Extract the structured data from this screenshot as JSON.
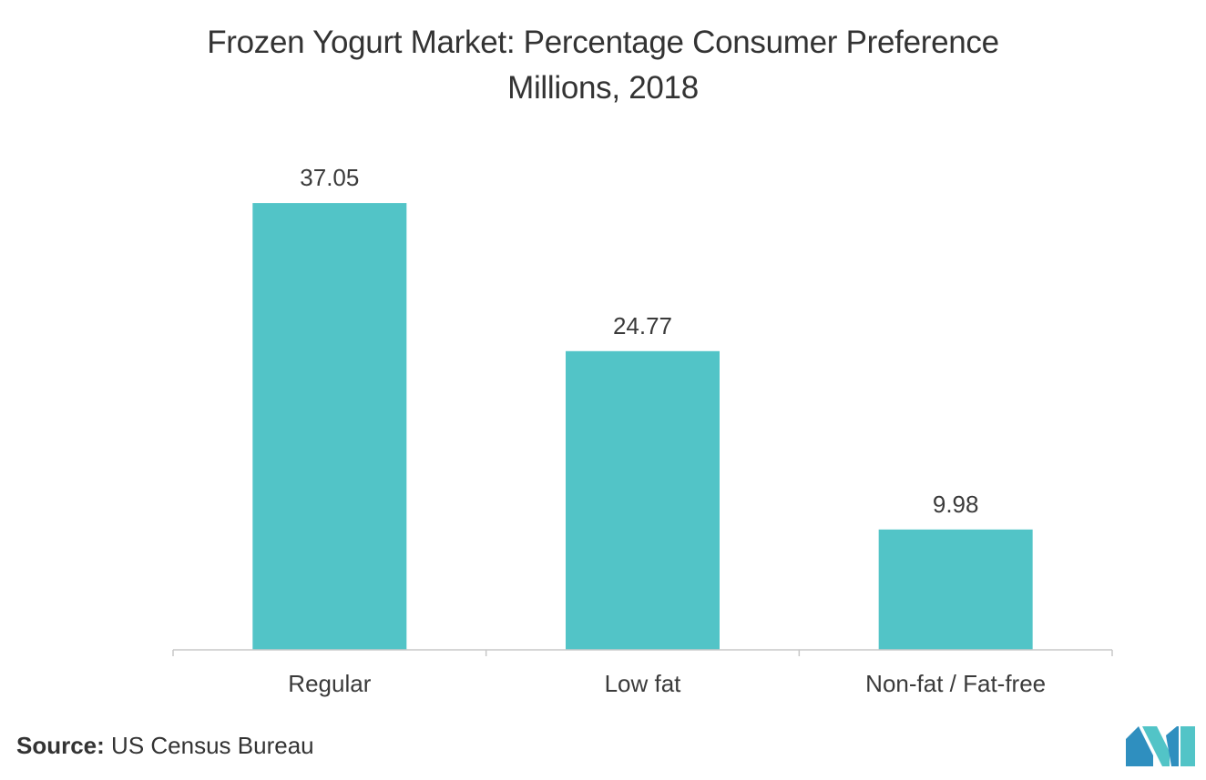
{
  "chart_data": {
    "type": "bar",
    "title": "Frozen Yogurt Market: Percentage Consumer Preference",
    "subtitle": "Millions, 2018",
    "categories": [
      "Regular",
      "Low fat",
      "Non-fat / Fat-free"
    ],
    "values": [
      37.05,
      24.77,
      9.98
    ],
    "data_labels": [
      "37.05",
      "24.77",
      "9.98"
    ],
    "xlabel": "",
    "ylabel": "",
    "ylim": [
      0,
      45
    ],
    "grid": false,
    "legend": "none",
    "bar_color": "#52c4c7"
  },
  "source": {
    "label": "Source:",
    "text": "US Census Bureau"
  },
  "logo": {
    "icon": "mordor-intelligence-logo-icon",
    "colors": [
      "#2f8fbf",
      "#52c4c7"
    ]
  }
}
